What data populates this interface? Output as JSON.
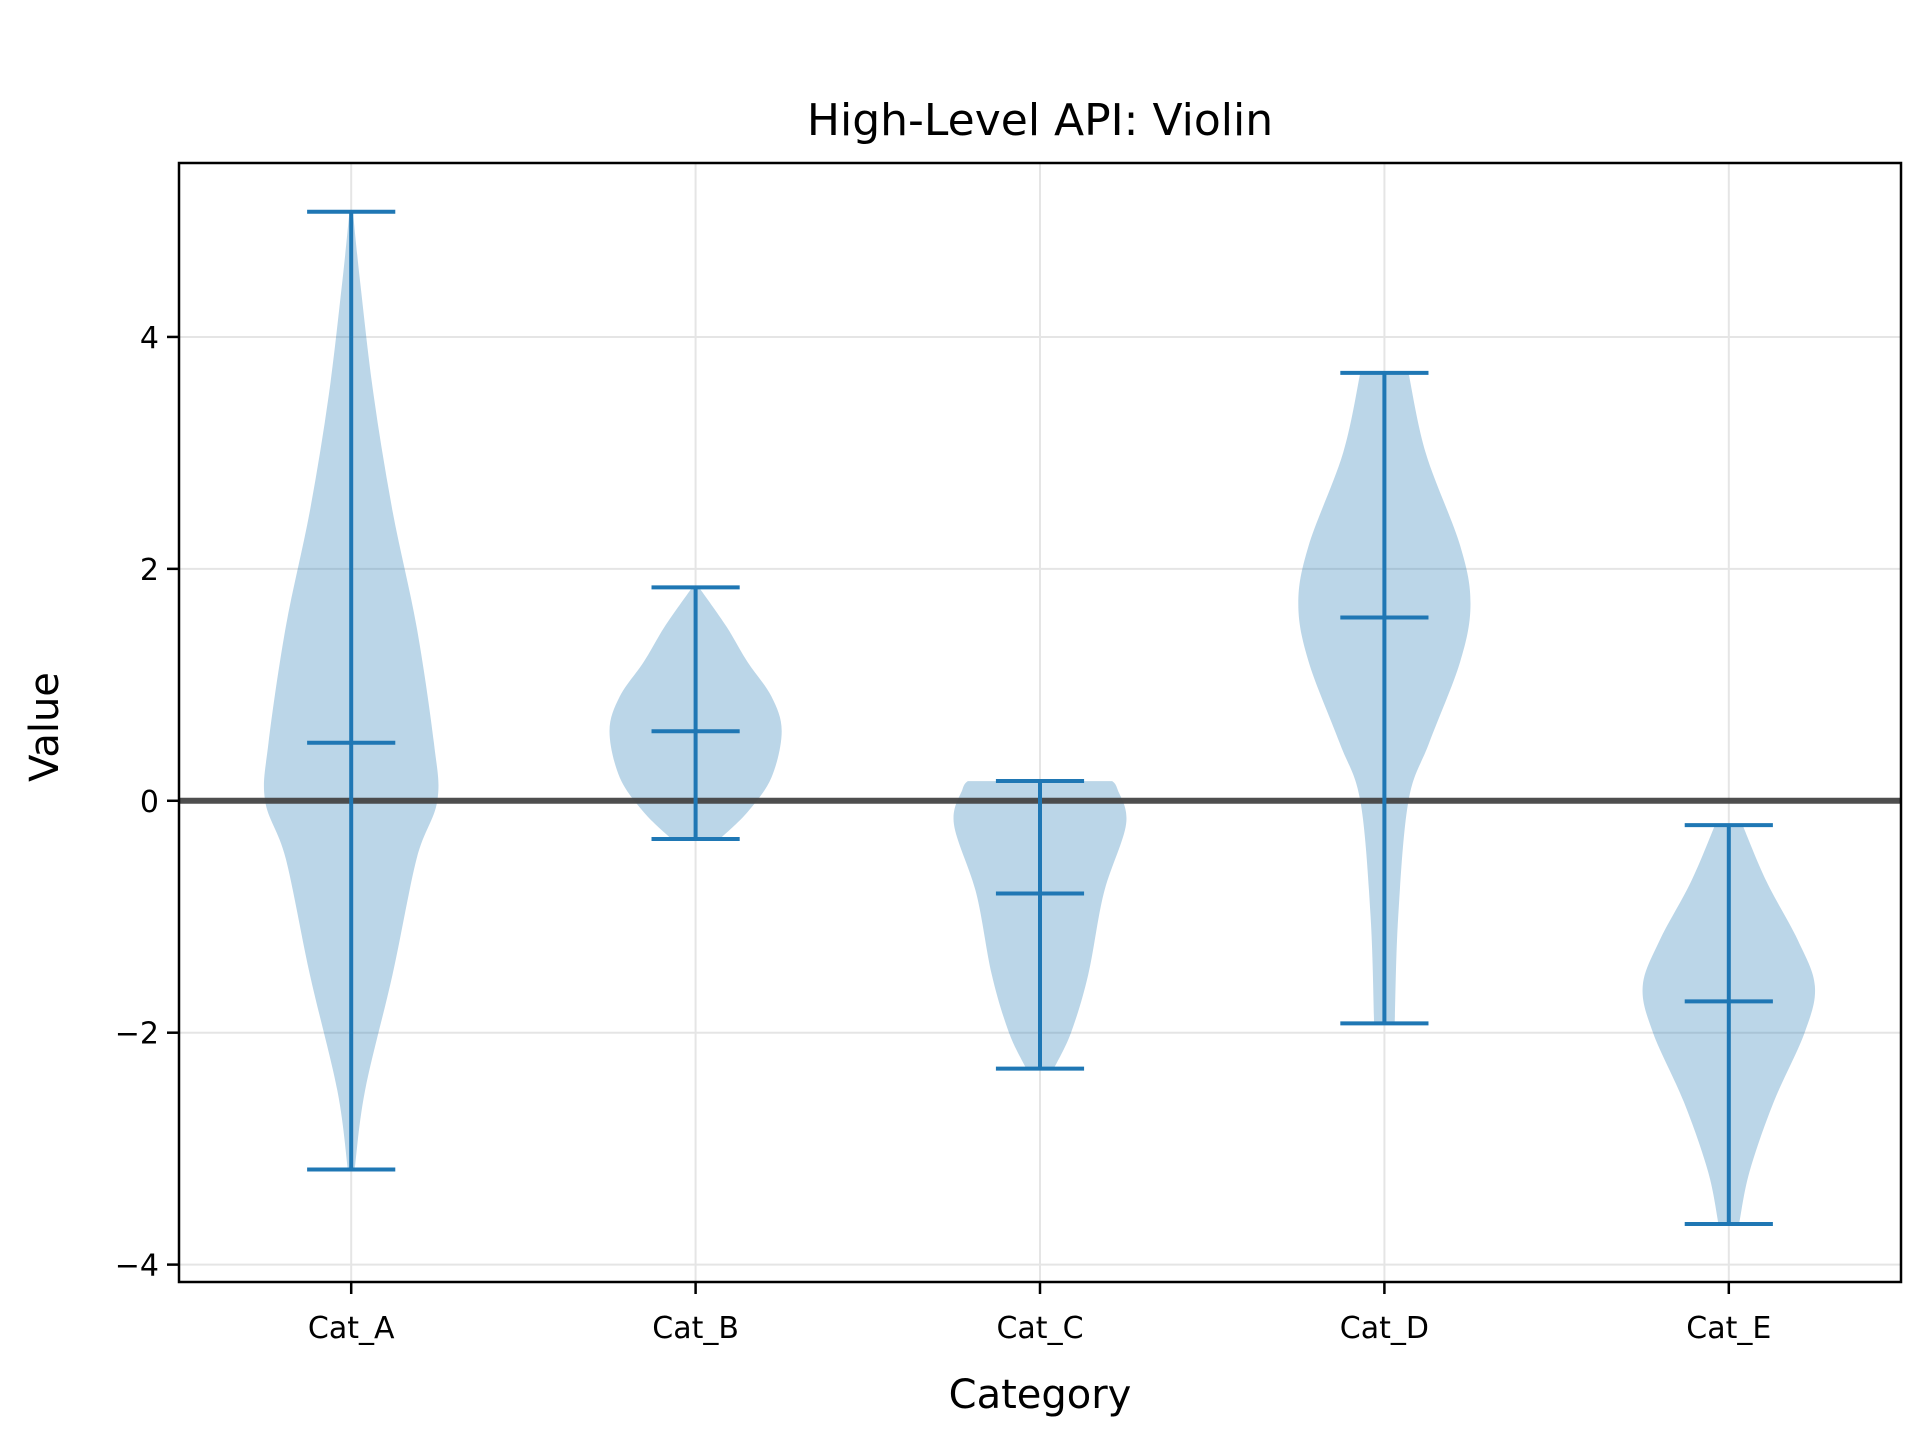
{
  "chart_data": {
    "type": "violin",
    "title": "High-Level API: Violin",
    "xlabel": "Category",
    "ylabel": "Value",
    "categories": [
      "Cat_A",
      "Cat_B",
      "Cat_C",
      "Cat_D",
      "Cat_E"
    ],
    "ylim": [
      -4.15,
      5.5
    ],
    "yticks": [
      -4,
      -2,
      0,
      2,
      4
    ],
    "ytick_labels": [
      "−4",
      "−2",
      "0",
      "2",
      "4"
    ],
    "grid": true,
    "reference_line_y": 0,
    "colors": {
      "body": "#1f77b4",
      "body_opacity": 0.3,
      "lines": "#1f77b4",
      "grid": "#e5e5e5",
      "reference_line": "#444444"
    },
    "violins": [
      {
        "category": "Cat_A",
        "min": -3.18,
        "max": 5.08,
        "median": 0.5,
        "density": [
          [
            -3.18,
            0.02
          ],
          [
            -2.5,
            0.08
          ],
          [
            -1.5,
            0.24
          ],
          [
            -0.5,
            0.38
          ],
          [
            0.0,
            0.5
          ],
          [
            0.5,
            0.48
          ],
          [
            1.5,
            0.38
          ],
          [
            2.5,
            0.24
          ],
          [
            3.5,
            0.13
          ],
          [
            4.5,
            0.05
          ],
          [
            5.08,
            0.01
          ]
        ]
      },
      {
        "category": "Cat_B",
        "min": -0.33,
        "max": 1.84,
        "median": 0.6,
        "density": [
          [
            -0.33,
            0.14
          ],
          [
            -0.1,
            0.3
          ],
          [
            0.2,
            0.44
          ],
          [
            0.6,
            0.5
          ],
          [
            0.9,
            0.44
          ],
          [
            1.2,
            0.3
          ],
          [
            1.5,
            0.18
          ],
          [
            1.84,
            0.02
          ]
        ]
      },
      {
        "category": "Cat_C",
        "min": -2.31,
        "max": 0.17,
        "median": -0.8,
        "density": [
          [
            -2.31,
            0.08
          ],
          [
            -2.0,
            0.18
          ],
          [
            -1.5,
            0.28
          ],
          [
            -0.8,
            0.37
          ],
          [
            -0.2,
            0.5
          ],
          [
            0.1,
            0.45
          ],
          [
            0.17,
            0.42
          ]
        ]
      },
      {
        "category": "Cat_D",
        "min": -1.92,
        "max": 3.69,
        "median": 1.58,
        "density": [
          [
            -1.92,
            0.06
          ],
          [
            -1.0,
            0.08
          ],
          [
            0.0,
            0.14
          ],
          [
            0.5,
            0.26
          ],
          [
            1.2,
            0.44
          ],
          [
            1.7,
            0.5
          ],
          [
            2.2,
            0.44
          ],
          [
            3.0,
            0.24
          ],
          [
            3.69,
            0.14
          ]
        ]
      },
      {
        "category": "Cat_E",
        "min": -3.65,
        "max": -0.21,
        "median": -1.73,
        "density": [
          [
            -3.65,
            0.06
          ],
          [
            -3.2,
            0.12
          ],
          [
            -2.6,
            0.26
          ],
          [
            -2.0,
            0.44
          ],
          [
            -1.6,
            0.5
          ],
          [
            -1.2,
            0.4
          ],
          [
            -0.7,
            0.22
          ],
          [
            -0.21,
            0.08
          ]
        ]
      }
    ]
  }
}
